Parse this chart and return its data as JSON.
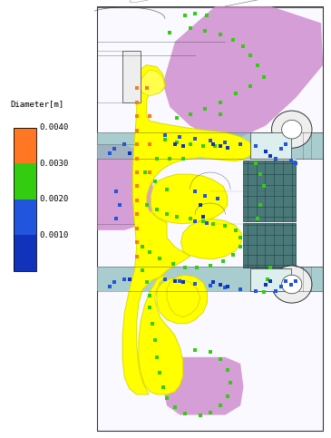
{
  "colorbar_label": "Diameter[m]",
  "colorbar_values": [
    0.004,
    0.003,
    0.002,
    0.001
  ],
  "colorbar_colors_top_to_bottom": [
    "#FF7722",
    "#33CC11",
    "#2255DD",
    "#1133BB"
  ],
  "background_color": "#FFFFFF",
  "fig_width": 3.65,
  "fig_height": 4.83,
  "dpi": 100,
  "yellow": "#FFFF00",
  "yellow_edge": "#DDDD00",
  "purple": "#CC88CC",
  "teal_light": "#88BBBB",
  "teal_dark": "#336666",
  "geo_line": "#333333",
  "particle_orange": "#FF7722",
  "particle_green": "#33CC11",
  "particle_blue": "#2255DD",
  "particle_dblue": "#1133BB"
}
